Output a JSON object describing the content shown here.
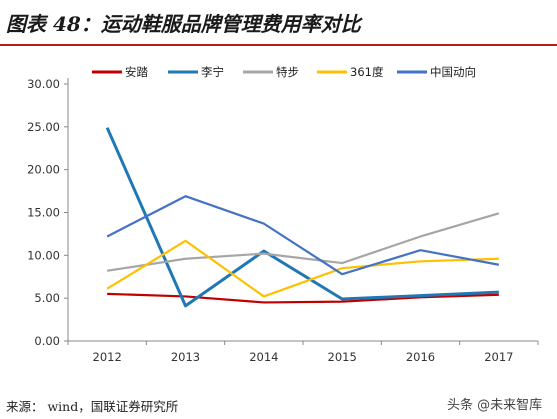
{
  "header": {
    "title": "图表 48：运动鞋服品牌管理费用率对比"
  },
  "footer": {
    "source": "来源： wind，国联证券研究所",
    "watermark": "头条 @未来智库"
  },
  "chart_data": {
    "type": "line",
    "categories": [
      "2012",
      "2013",
      "2014",
      "2015",
      "2016",
      "2017"
    ],
    "ylim": [
      0,
      30
    ],
    "yticks": [
      "0.00",
      "5.00",
      "10.00",
      "15.00",
      "20.00",
      "25.00",
      "30.00"
    ],
    "grid": false,
    "legend_position": "top",
    "series": [
      {
        "name": "安踏",
        "color": "#c00000",
        "values": [
          5.5,
          5.2,
          4.5,
          4.6,
          5.1,
          5.4
        ]
      },
      {
        "name": "李宁",
        "color": "#1f77b4",
        "values": [
          24.9,
          4.1,
          10.5,
          4.9,
          5.3,
          5.7
        ]
      },
      {
        "name": "特步",
        "color": "#a6a6a6",
        "values": [
          8.2,
          9.6,
          10.2,
          9.1,
          12.2,
          14.9
        ]
      },
      {
        "name": "361度",
        "color": "#ffc000",
        "values": [
          6.1,
          11.7,
          5.2,
          8.5,
          9.3,
          9.6
        ]
      },
      {
        "name": "中国动向",
        "color": "#4472c4",
        "values": [
          12.2,
          16.9,
          13.7,
          7.8,
          10.6,
          8.9
        ]
      }
    ]
  }
}
